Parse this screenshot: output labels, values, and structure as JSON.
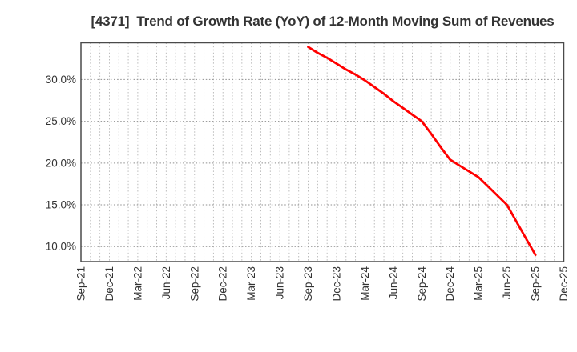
{
  "chart_data": {
    "type": "line",
    "title": "[4371]  Trend of Growth Rate (YoY) of 12-Month Moving Sum of Revenues",
    "x_axis": {
      "tick_labels": [
        "Sep-21",
        "Dec-21",
        "Mar-22",
        "Jun-22",
        "Sep-22",
        "Dec-22",
        "Mar-23",
        "Jun-23",
        "Sep-23",
        "Dec-23",
        "Mar-24",
        "Jun-24",
        "Sep-24",
        "Dec-24",
        "Mar-25",
        "Jun-25",
        "Sep-25",
        "Dec-25"
      ],
      "months_between_ticks": 3,
      "xlim_months": [
        0,
        51
      ],
      "gridline_every_month": true
    },
    "y_axis": {
      "tick_labels": [
        "10.0%",
        "15.0%",
        "20.0%",
        "25.0%",
        "30.0%"
      ],
      "tick_values": [
        10,
        15,
        20,
        25,
        30
      ],
      "ylim": [
        8.2,
        34.4
      ],
      "unit": "%"
    },
    "grid": {
      "style": "dotted",
      "horizontal": true,
      "vertical": true
    },
    "legend": "none",
    "series": [
      {
        "name": "Growth Rate (YoY) of 12-Month Moving Sum of Revenues",
        "color": "#ff0000",
        "points": [
          {
            "month": "Sep-23",
            "month_index": 24,
            "value": 33.9
          },
          {
            "month": "Oct-23",
            "month_index": 25,
            "value": 33.2
          },
          {
            "month": "Nov-23",
            "month_index": 26,
            "value": 32.6
          },
          {
            "month": "Dec-23",
            "month_index": 27,
            "value": 31.9
          },
          {
            "month": "Jan-24",
            "month_index": 28,
            "value": 31.2
          },
          {
            "month": "Feb-24",
            "month_index": 29,
            "value": 30.6
          },
          {
            "month": "Mar-24",
            "month_index": 30,
            "value": 29.9
          },
          {
            "month": "Apr-24",
            "month_index": 31,
            "value": 29.1
          },
          {
            "month": "May-24",
            "month_index": 32,
            "value": 28.3
          },
          {
            "month": "Jun-24",
            "month_index": 33,
            "value": 27.4
          },
          {
            "month": "Jul-24",
            "month_index": 34,
            "value": 26.6
          },
          {
            "month": "Aug-24",
            "month_index": 35,
            "value": 25.8
          },
          {
            "month": "Sep-24",
            "month_index": 36,
            "value": 25.0
          },
          {
            "month": "Oct-24",
            "month_index": 37,
            "value": 23.5
          },
          {
            "month": "Nov-24",
            "month_index": 38,
            "value": 21.9
          },
          {
            "month": "Dec-24",
            "month_index": 39,
            "value": 20.4
          },
          {
            "month": "Jan-25",
            "month_index": 40,
            "value": 19.7
          },
          {
            "month": "Feb-25",
            "month_index": 41,
            "value": 19.0
          },
          {
            "month": "Mar-25",
            "month_index": 42,
            "value": 18.3
          },
          {
            "month": "Apr-25",
            "month_index": 43,
            "value": 17.2
          },
          {
            "month": "May-25",
            "month_index": 44,
            "value": 16.1
          },
          {
            "month": "Jun-25",
            "month_index": 45,
            "value": 15.0
          },
          {
            "month": "Jul-25",
            "month_index": 46,
            "value": 13.0
          },
          {
            "month": "Aug-25",
            "month_index": 47,
            "value": 11.0
          },
          {
            "month": "Sep-25",
            "month_index": 48,
            "value": 9.0
          }
        ]
      }
    ]
  },
  "colors": {
    "background": "#ffffff",
    "title_text": "#333333",
    "tick_text": "#333333",
    "plot_border": "#4a4a4a",
    "grid_horizontal": "#8f8f8f",
    "grid_vertical": "#b5b5b5",
    "line": "#ff0000"
  }
}
